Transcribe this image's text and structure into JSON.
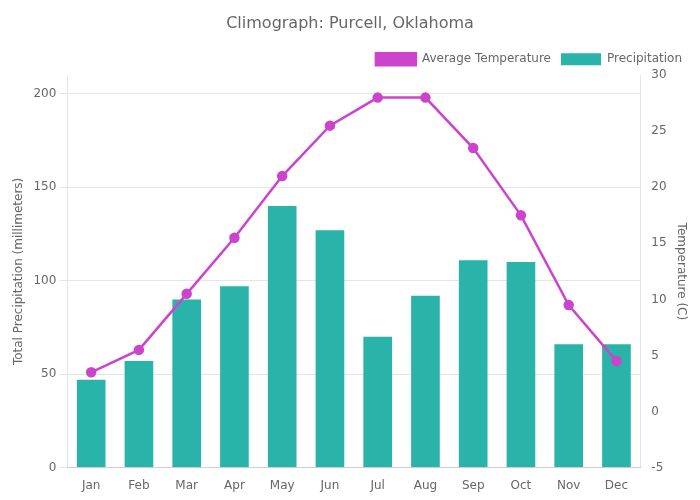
{
  "chart_data": {
    "type": "bar",
    "title": "Climograph: Purcell, Oklahoma",
    "categories": [
      "Jan",
      "Feb",
      "Mar",
      "Apr",
      "May",
      "Jun",
      "Jul",
      "Aug",
      "Sep",
      "Oct",
      "Nov",
      "Dec"
    ],
    "series": [
      {
        "name": "Average Temperature",
        "type": "line",
        "color": "#cc44cc",
        "marker": "circle",
        "axis": "y2",
        "values": [
          3.5,
          5.5,
          10.5,
          15.5,
          21,
          25.5,
          28,
          28,
          23.5,
          17.5,
          9.5,
          4.5
        ]
      },
      {
        "name": "Precipitation",
        "type": "bar",
        "color": "#2ab3a8",
        "values": [
          47,
          57,
          90,
          97,
          140,
          127,
          70,
          92,
          111,
          110,
          66,
          66
        ]
      }
    ],
    "ylabel": "Total Precipitation (millimeters)",
    "y2label": "Temperature (C)",
    "ylim": [
      0,
      210
    ],
    "yticks": [
      0,
      50,
      100,
      150,
      200
    ],
    "y2lim": [
      -5,
      30
    ],
    "y2ticks": [
      -5,
      0,
      5,
      10,
      15,
      20,
      25,
      30
    ],
    "grid": true,
    "legend": "upper right"
  }
}
